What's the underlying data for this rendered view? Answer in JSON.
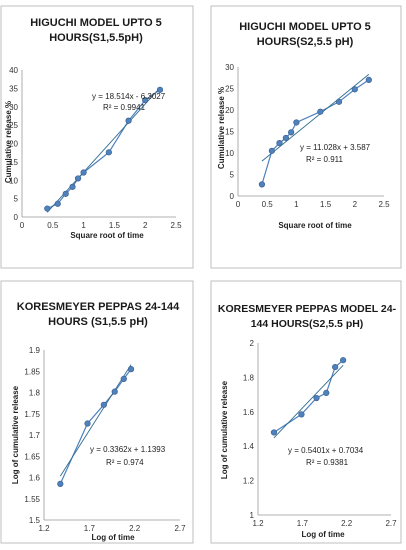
{
  "chart_data": [
    {
      "type": "scatter",
      "title_lines": [
        "HIGUCHI MODEL UPTO 5",
        "HOURS(S1,5.5pH)"
      ],
      "xlabel": "Square root of time",
      "ylabel": "Cumulative release %",
      "xlim": [
        0,
        2.5
      ],
      "ylim": [
        0,
        40
      ],
      "xticks": [
        0,
        0.5,
        1,
        1.5,
        2,
        2.5
      ],
      "yticks": [
        0,
        5,
        10,
        15,
        20,
        25,
        30,
        35,
        40
      ],
      "xtick_labels": [
        "0",
        "0.5",
        "1",
        "1.5",
        "2",
        "2.5"
      ],
      "ytick_labels": [
        "0",
        "5",
        "10",
        "15",
        "20",
        "25",
        "30",
        "35",
        "40"
      ],
      "grid": false,
      "series": [
        {
          "x": [
            0.41,
            0.58,
            0.71,
            0.82,
            0.91,
            1.0,
            1.41,
            1.73,
            2.0,
            2.24
          ],
          "y": [
            2.3,
            3.6,
            6.3,
            8.2,
            10.5,
            12.1,
            17.6,
            26.2,
            31.8,
            34.6
          ]
        }
      ],
      "trendline": {
        "slope": 18.514,
        "intercept": -6.3027,
        "x_range": [
          0.41,
          2.24
        ]
      },
      "equation": "y = 18.514x - 6.3027",
      "r2": "R² = 0.9941",
      "marker_color": "#4f81bd",
      "line_color": "#4f81bd",
      "trend_color": "#2f6d8f"
    },
    {
      "type": "scatter",
      "title_lines": [
        "HIGUCHI MODEL UPTO 5",
        "HOURS(S2,5.5 pH)"
      ],
      "xlabel": "Square root of time",
      "ylabel": "Cumulative release %",
      "xlim": [
        0,
        2.5
      ],
      "ylim": [
        0,
        30
      ],
      "xticks": [
        0,
        0.5,
        1,
        1.5,
        2,
        2.5
      ],
      "yticks": [
        0,
        5,
        10,
        15,
        20,
        25,
        30
      ],
      "xtick_labels": [
        "0",
        "0.5",
        "1",
        "1.5",
        "2",
        "2.5"
      ],
      "ytick_labels": [
        "0",
        "5",
        "10",
        "15",
        "20",
        "25",
        "30"
      ],
      "grid": false,
      "series": [
        {
          "x": [
            0.41,
            0.58,
            0.71,
            0.82,
            0.91,
            1.0,
            1.41,
            1.73,
            2.0,
            2.24
          ],
          "y": [
            2.7,
            10.5,
            12.3,
            13.5,
            14.8,
            17.1,
            19.6,
            21.9,
            24.8,
            27.0
          ]
        }
      ],
      "trendline": {
        "slope": 11.028,
        "intercept": 3.587,
        "x_range": [
          0.41,
          2.24
        ]
      },
      "equation": "y = 11.028x + 3.587",
      "r2": "R² = 0.911",
      "marker_color": "#4f81bd",
      "line_color": "#4f81bd",
      "trend_color": "#2f6d8f"
    },
    {
      "type": "scatter",
      "title_lines": [
        "KORESMEYER PEPPAS 24-144",
        "HOURS (S1,5.5 pH)"
      ],
      "xlabel": "Log of time",
      "ylabel": "Log of cumulative release",
      "xlim": [
        1.2,
        2.7
      ],
      "ylim": [
        1.5,
        1.9
      ],
      "xticks": [
        1.2,
        1.7,
        2.2,
        2.7
      ],
      "yticks": [
        1.5,
        1.55,
        1.6,
        1.65,
        1.7,
        1.75,
        1.8,
        1.85,
        1.9
      ],
      "xtick_labels": [
        "1.2",
        "1.7",
        "2.2",
        "2.7"
      ],
      "ytick_labels": [
        "1.5",
        "1.55",
        "1.6",
        "1.65",
        "1.7",
        "1.75",
        "1.8",
        "1.85",
        "1.9"
      ],
      "grid": false,
      "series": [
        {
          "x": [
            1.38,
            1.68,
            1.86,
            1.98,
            2.08,
            2.16
          ],
          "y": [
            1.585,
            1.727,
            1.771,
            1.802,
            1.832,
            1.855
          ]
        }
      ],
      "trendline": {
        "slope": 0.3362,
        "intercept": 1.1393,
        "x_range": [
          1.38,
          2.16
        ]
      },
      "equation": "y = 0.3362x + 1.1393",
      "r2": "R² = 0.974",
      "marker_color": "#4f81bd",
      "line_color": "#4f81bd",
      "trend_color": "#2f6d8f"
    },
    {
      "type": "scatter",
      "title_lines": [
        "KORESMEYER PEPPAS MODEL 24-",
        "144 HOURS(S2,5.5 pH)"
      ],
      "xlabel": "Log of time",
      "ylabel": "Log of cumulative release",
      "xlim": [
        1.2,
        2.7
      ],
      "ylim": [
        1,
        2
      ],
      "xticks": [
        1.2,
        1.7,
        2.2,
        2.7
      ],
      "yticks": [
        1,
        1.2,
        1.4,
        1.6,
        1.8,
        2
      ],
      "xtick_labels": [
        "1.2",
        "1.7",
        "2.2",
        "2.7"
      ],
      "ytick_labels": [
        "1",
        "1.2",
        "1.4",
        "1.6",
        "1.8",
        "2"
      ],
      "grid": false,
      "series": [
        {
          "x": [
            1.38,
            1.69,
            1.86,
            1.97,
            2.07,
            2.16
          ],
          "y": [
            1.48,
            1.585,
            1.68,
            1.71,
            1.86,
            1.9
          ]
        }
      ],
      "trendline": {
        "slope": 0.5401,
        "intercept": 0.7034,
        "x_range": [
          1.38,
          2.16
        ]
      },
      "equation": "y = 0.5401x + 0.7034",
      "r2": "R² = 0.9381",
      "marker_color": "#4f81bd",
      "line_color": "#4f81bd",
      "trend_color": "#2f6d8f"
    }
  ]
}
